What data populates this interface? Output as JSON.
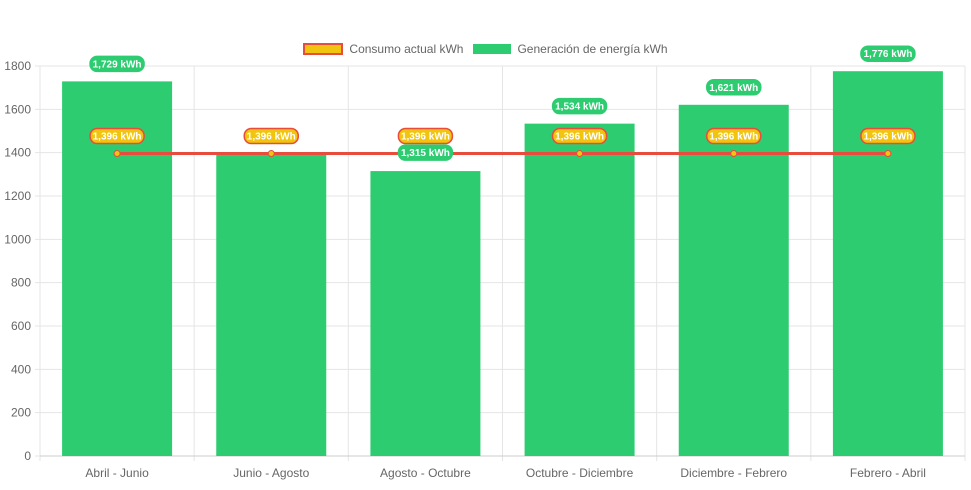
{
  "chart_data": {
    "type": "bar",
    "categories": [
      "Abril - Junio",
      "Junio - Agosto",
      "Agosto - Octubre",
      "Octubre - Diciembre",
      "Diciembre - Febrero",
      "Febrero - Abril"
    ],
    "series": [
      {
        "name": "Consumo actual kWh",
        "type": "line",
        "values": [
          1396,
          1396,
          1396,
          1396,
          1396,
          1396
        ],
        "labels": [
          "1,396 kWh",
          "1,396 kWh",
          "1,396 kWh",
          "1,396 kWh",
          "1,396 kWh",
          "1,396 kWh"
        ],
        "color": "#f1c40f",
        "border": "#e74c3c"
      },
      {
        "name": "Generación de energía kWh",
        "type": "bar",
        "values": [
          1729,
          1396,
          1315,
          1534,
          1621,
          1776
        ],
        "labels": [
          "1,729 kWh",
          "1,396 kWh",
          "1,315 kWh",
          "1,534 kWh",
          "1,621 kWh",
          "1,776 kWh"
        ],
        "color": "#2ecc71"
      }
    ],
    "ylim": [
      0,
      1800
    ],
    "yticks": [
      0,
      200,
      400,
      600,
      800,
      1000,
      1200,
      1400,
      1600,
      1800
    ],
    "legend": "top",
    "grid": true
  }
}
